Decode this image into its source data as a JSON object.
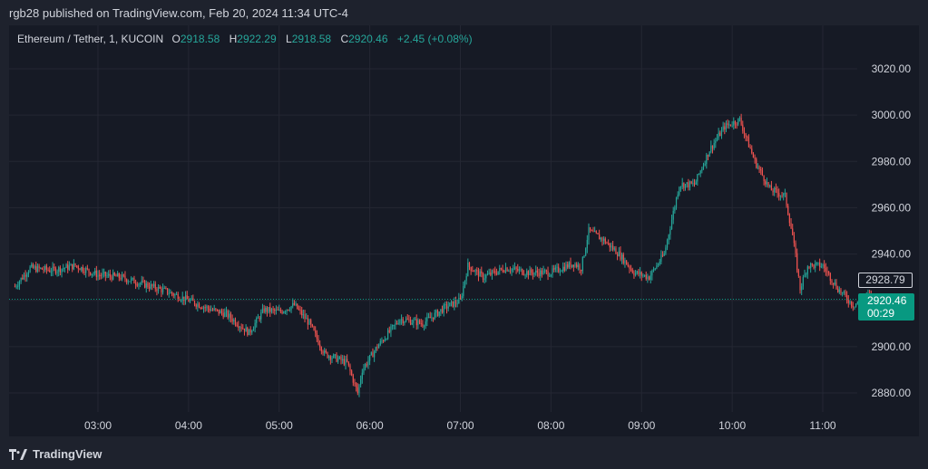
{
  "publish": {
    "text": "rgb28 published on TradingView.com, Feb 20, 2024 11:34 UTC-4"
  },
  "legend": {
    "symbol": "Ethereum / Tether, 1, KUCOIN",
    "open_label": "O",
    "open": "2918.58",
    "high_label": "H",
    "high": "2922.29",
    "low_label": "L",
    "low": "2918.58",
    "close_label": "C",
    "close": "2920.46",
    "change": "+2.45 (+0.08%)"
  },
  "price_tags": {
    "high_marker": "2928.79",
    "last_price": "2920.46",
    "countdown": "00:29"
  },
  "footer": {
    "brand": "TradingView"
  },
  "colors": {
    "up": "#26a69a",
    "down": "#ef5350",
    "grid": "#242733",
    "axis_text": "#d1d4dc",
    "last_price_bg": "#089981"
  },
  "chart_data": {
    "type": "candlestick",
    "interval": "1 minute",
    "x_ticks": [
      "03:00",
      "04:00",
      "05:00",
      "06:00",
      "07:00",
      "08:00",
      "09:00",
      "10:00",
      "11:00"
    ],
    "y_ticks": [
      2880,
      2900,
      2920,
      2940,
      2960,
      2980,
      3000,
      3020
    ],
    "y_tick_labels": [
      "2880.00",
      "2900.00",
      "2920.00",
      "2940.00",
      "2960.00",
      "2980.00",
      "3000.00",
      "3020.00"
    ],
    "ylim": [
      2874,
      3037
    ],
    "xlim": [
      "02:05",
      "11:36"
    ],
    "last_price": 2920.46,
    "price_path": [
      [
        "02:05",
        2926
      ],
      [
        "02:15",
        2934
      ],
      [
        "02:30",
        2933
      ],
      [
        "02:45",
        2935
      ],
      [
        "03:00",
        2931
      ],
      [
        "03:15",
        2930
      ],
      [
        "03:30",
        2927
      ],
      [
        "03:45",
        2924
      ],
      [
        "04:00",
        2920
      ],
      [
        "04:15",
        2916
      ],
      [
        "04:25",
        2914
      ],
      [
        "04:40",
        2906
      ],
      [
        "04:50",
        2916
      ],
      [
        "05:00",
        2915
      ],
      [
        "05:10",
        2918
      ],
      [
        "05:20",
        2910
      ],
      [
        "05:30",
        2897
      ],
      [
        "05:45",
        2893
      ],
      [
        "05:52",
        2880
      ],
      [
        "05:55",
        2890
      ],
      [
        "06:05",
        2900
      ],
      [
        "06:20",
        2912
      ],
      [
        "06:35",
        2910
      ],
      [
        "06:50",
        2917
      ],
      [
        "07:00",
        2920
      ],
      [
        "07:05",
        2935
      ],
      [
        "07:15",
        2930
      ],
      [
        "07:30",
        2934
      ],
      [
        "07:45",
        2932
      ],
      [
        "08:00",
        2932
      ],
      [
        "08:15",
        2936
      ],
      [
        "08:20",
        2934
      ],
      [
        "08:25",
        2950
      ],
      [
        "08:35",
        2946
      ],
      [
        "08:45",
        2940
      ],
      [
        "08:55",
        2932
      ],
      [
        "09:05",
        2930
      ],
      [
        "09:15",
        2940
      ],
      [
        "09:25",
        2970
      ],
      [
        "09:35",
        2970
      ],
      [
        "09:45",
        2985
      ],
      [
        "09:55",
        2995
      ],
      [
        "10:05",
        2998
      ],
      [
        "10:15",
        2980
      ],
      [
        "10:25",
        2968
      ],
      [
        "10:35",
        2965
      ],
      [
        "10:40",
        2948
      ],
      [
        "10:45",
        2925
      ],
      [
        "10:50",
        2935
      ],
      [
        "11:00",
        2935
      ],
      [
        "11:10",
        2925
      ],
      [
        "11:20",
        2918
      ],
      [
        "11:30",
        2922
      ],
      [
        "11:36",
        2920.46
      ]
    ]
  }
}
